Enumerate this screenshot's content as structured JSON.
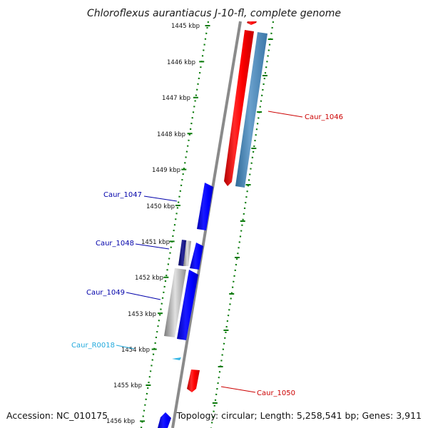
{
  "title": "Chloroflexus aurantiacus J-10-fl, complete genome",
  "footer": {
    "accession": "Accession: NC_010175",
    "summary": "Topology: circular; Length: 5,258,541 bp; Genes: 3,911"
  },
  "ticks": [
    "1445 kbp",
    "1446 kbp",
    "1447 kbp",
    "1448 kbp",
    "1449 kbp",
    "1450 kbp",
    "1451 kbp",
    "1452 kbp",
    "1453 kbp",
    "1454 kbp",
    "1455 kbp",
    "1456 kbp"
  ],
  "genes": [
    {
      "id": "caur_1046",
      "label": "Caur_1046",
      "strand": "forward",
      "color": "#cc0000"
    },
    {
      "id": "caur_1047",
      "label": "Caur_1047",
      "strand": "reverse",
      "color": "#0000aa"
    },
    {
      "id": "caur_1048",
      "label": "Caur_1048",
      "strand": "reverse",
      "color": "#0000aa"
    },
    {
      "id": "caur_1049",
      "label": "Caur_1049",
      "strand": "reverse",
      "color": "#0000aa"
    },
    {
      "id": "caur_r0018",
      "label": "Caur_R0018",
      "strand": "reverse",
      "color": "#22aadd"
    },
    {
      "id": "caur_1050",
      "label": "Caur_1050",
      "strand": "forward",
      "color": "#cc0000"
    }
  ],
  "colors": {
    "forward_cds": "#ff0000",
    "reverse_cds": "#0000ff",
    "forward_similarity": "#4a86b8",
    "reverse_similarity": "#a8a8a8",
    "tick": "#0a7a0a",
    "backbone": "#8a8a8a",
    "rna": "#33b5e5"
  }
}
